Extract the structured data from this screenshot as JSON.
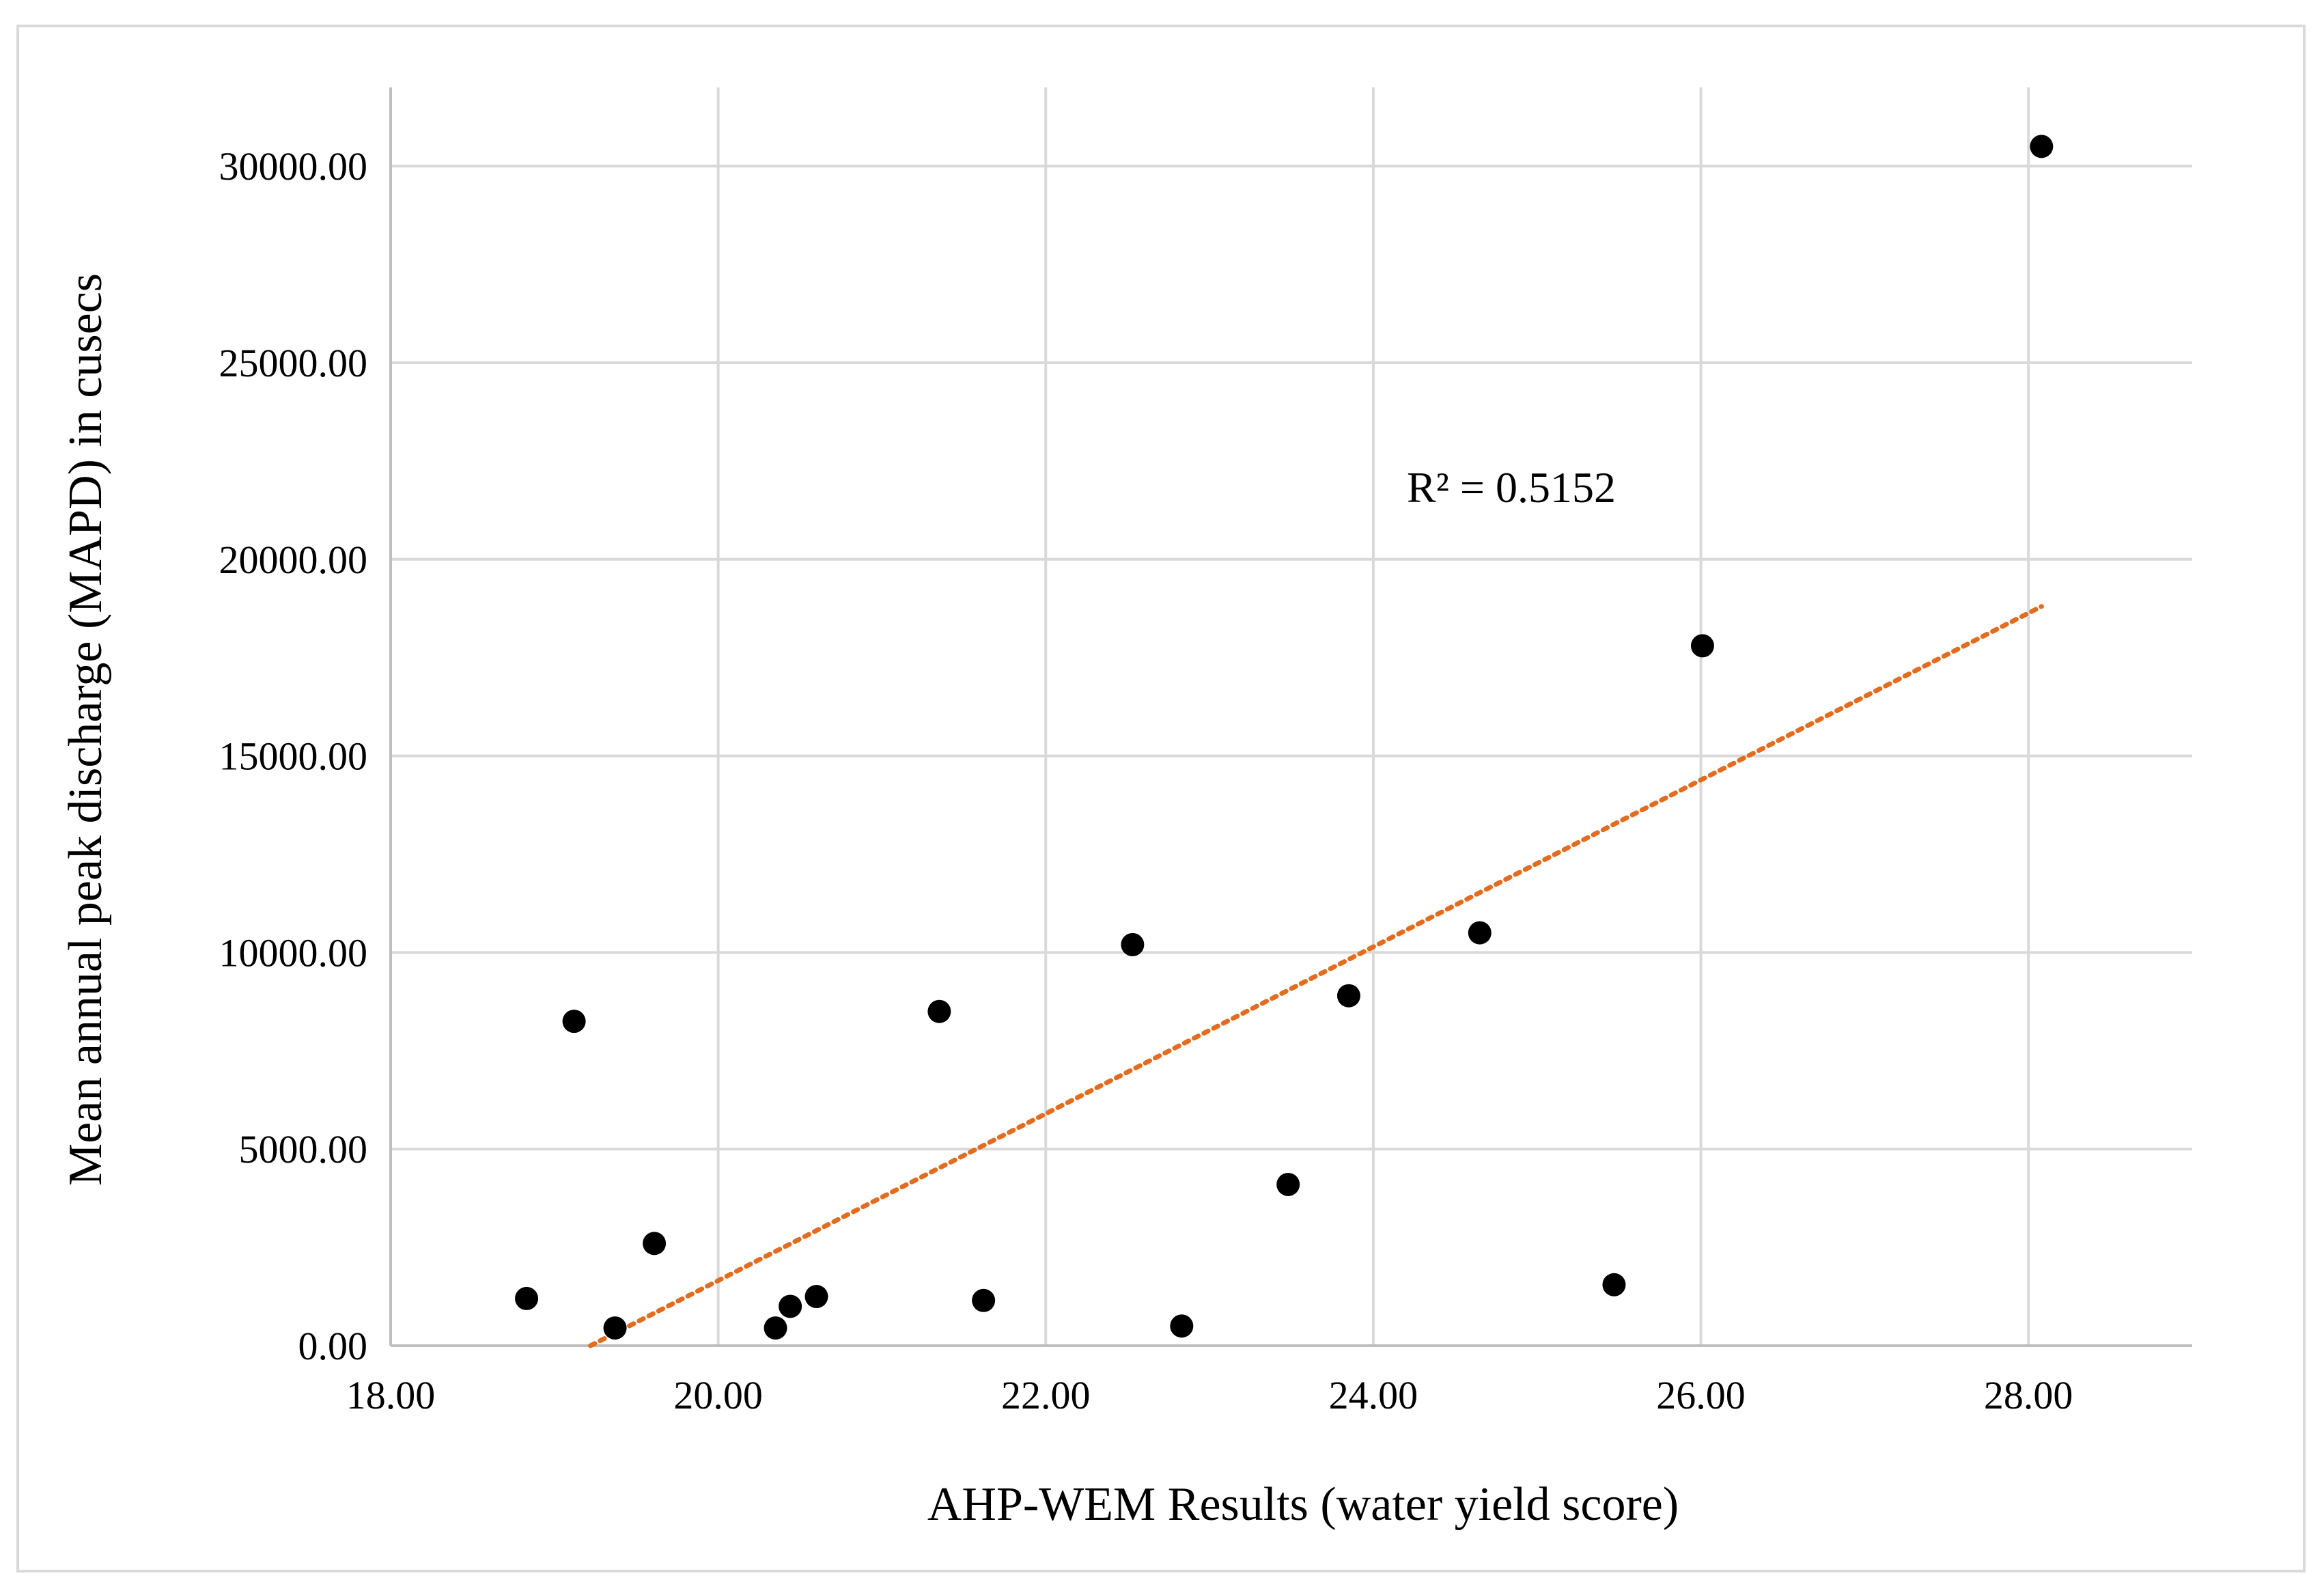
{
  "chart_data": {
    "type": "scatter",
    "title": "",
    "xlabel": "AHP-WEM Results (water yield score)",
    "ylabel": "Mean annual peak discharge (MAPD) in cusecs",
    "xlim": [
      18,
      29
    ],
    "ylim": [
      0,
      32000
    ],
    "x_ticks": [
      "18.00",
      "20.00",
      "22.00",
      "24.00",
      "26.00",
      "28.00"
    ],
    "y_ticks": [
      "0.00",
      "5000.00",
      "10000.00",
      "15000.00",
      "20000.00",
      "25000.00",
      "30000.00"
    ],
    "grid": true,
    "legend": "none",
    "series": [
      {
        "points": [
          {
            "x": 18.83,
            "y": 1200
          },
          {
            "x": 19.12,
            "y": 8250
          },
          {
            "x": 19.37,
            "y": 450
          },
          {
            "x": 19.61,
            "y": 2600
          },
          {
            "x": 20.35,
            "y": 450
          },
          {
            "x": 20.44,
            "y": 1000
          },
          {
            "x": 20.6,
            "y": 1250
          },
          {
            "x": 21.35,
            "y": 8500
          },
          {
            "x": 21.62,
            "y": 1150
          },
          {
            "x": 22.53,
            "y": 10200
          },
          {
            "x": 22.83,
            "y": 500
          },
          {
            "x": 23.48,
            "y": 4100
          },
          {
            "x": 23.85,
            "y": 8900
          },
          {
            "x": 24.65,
            "y": 10500
          },
          {
            "x": 25.47,
            "y": 1550
          },
          {
            "x": 26.01,
            "y": 17800
          },
          {
            "x": 28.08,
            "y": 30500
          }
        ],
        "color": "#000000"
      }
    ],
    "trendline": {
      "type": "linear",
      "style": "dotted",
      "color": "#e36c1f",
      "x_range": [
        19.22,
        28.08
      ],
      "y_range": [
        0,
        18800
      ],
      "r_squared_label": "R² = 0.5152"
    }
  }
}
